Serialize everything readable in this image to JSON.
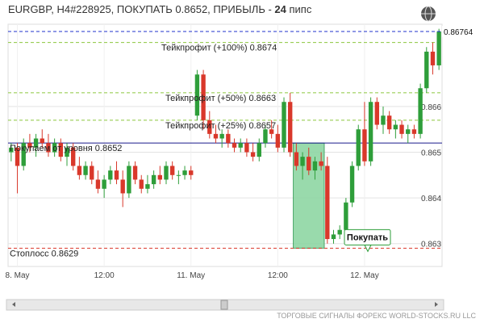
{
  "chart_data": {
    "type": "candlestick",
    "title": "EURGBP, H4#228925, ПОКУПАТЬ 0.8652, ПРИБЫЛЬ - ",
    "profit": "24",
    "profit_unit": " пипс",
    "categories": [
      null,
      "8. May",
      null,
      null,
      null,
      null,
      null,
      null,
      null,
      null,
      null,
      null,
      null,
      null,
      null,
      "12:00",
      null,
      null,
      null,
      null,
      null,
      null,
      null,
      null,
      null,
      null,
      null,
      null,
      null,
      "11. May",
      null,
      null,
      null,
      null,
      null,
      null,
      null,
      null,
      null,
      null,
      null,
      null,
      null,
      "12:00",
      null,
      null,
      null,
      null,
      null,
      null,
      null,
      null,
      null,
      null,
      null,
      null,
      null,
      "12. May",
      null,
      null,
      null,
      null,
      null,
      null,
      null,
      null,
      null,
      null,
      null,
      null
    ],
    "open": [
      0.865,
      0.8651,
      0.8647,
      0.8652,
      0.8651,
      0.8653,
      0.8652,
      0.865,
      0.8652,
      0.8649,
      0.8651,
      0.8647,
      0.8645,
      0.8647,
      0.8644,
      0.8642,
      0.8644,
      0.8646,
      0.8644,
      0.8641,
      0.8647,
      0.8644,
      0.8642,
      0.8643,
      0.8645,
      0.8644,
      0.8647,
      0.8645,
      0.8645,
      0.8646,
      0.8658,
      0.8667,
      0.8657,
      0.8654,
      0.8653,
      0.8654,
      0.8652,
      0.8651,
      0.8652,
      0.865,
      0.8649,
      0.8652,
      0.8655,
      0.8654,
      0.8651,
      0.8661,
      0.865,
      0.8647,
      0.8649,
      0.8646,
      0.8648,
      0.8647,
      0.8631,
      0.8632,
      0.8633,
      0.8639,
      0.8647,
      0.8655,
      0.8648,
      0.8661,
      0.8656,
      0.8658,
      0.8655,
      0.8656,
      0.8654,
      0.8655,
      0.8654,
      0.8664,
      0.8672,
      0.8669
    ],
    "high": [
      0.8652,
      0.8652,
      0.8653,
      0.8654,
      0.8654,
      0.8655,
      0.8654,
      0.8653,
      0.8653,
      0.8652,
      0.8652,
      0.8649,
      0.8648,
      0.8648,
      0.8646,
      0.8645,
      0.8647,
      0.8648,
      0.8646,
      0.8648,
      0.8648,
      0.8645,
      0.8645,
      0.8646,
      0.8647,
      0.8648,
      0.8648,
      0.8646,
      0.8647,
      0.8647,
      0.8668,
      0.8668,
      0.8659,
      0.8656,
      0.8655,
      0.8655,
      0.8653,
      0.8653,
      0.8653,
      0.8652,
      0.8653,
      0.8656,
      0.8657,
      0.8656,
      0.8662,
      0.8663,
      0.8652,
      0.865,
      0.8651,
      0.8649,
      0.865,
      0.8649,
      0.8633,
      0.8634,
      0.864,
      0.8648,
      0.8656,
      0.8661,
      0.8662,
      0.8662,
      0.866,
      0.8659,
      0.8657,
      0.8657,
      0.8656,
      0.8656,
      0.8665,
      0.8673,
      0.8674,
      0.8677
    ],
    "low": [
      0.8648,
      0.8641,
      0.8646,
      0.865,
      0.8649,
      0.8651,
      0.8649,
      0.8649,
      0.8648,
      0.8647,
      0.8646,
      0.8644,
      0.8644,
      0.8643,
      0.8641,
      0.864,
      0.8643,
      0.8643,
      0.8638,
      0.864,
      0.8643,
      0.8641,
      0.8641,
      0.8642,
      0.8643,
      0.8643,
      0.8644,
      0.8643,
      0.8644,
      0.8644,
      0.8657,
      0.8655,
      0.8653,
      0.8652,
      0.8651,
      0.8651,
      0.865,
      0.865,
      0.8649,
      0.8648,
      0.8648,
      0.8651,
      0.8653,
      0.865,
      0.865,
      0.8649,
      0.8646,
      0.8644,
      0.8645,
      0.8644,
      0.8646,
      0.863,
      0.863,
      0.8631,
      0.8632,
      0.8638,
      0.8646,
      0.8647,
      0.8647,
      0.8655,
      0.8654,
      0.8654,
      0.8653,
      0.8653,
      0.8652,
      0.8653,
      0.8653,
      0.8663,
      0.8667,
      0.8668
    ],
    "close": [
      0.8651,
      0.8647,
      0.8652,
      0.8651,
      0.8653,
      0.8652,
      0.865,
      0.8652,
      0.8649,
      0.8651,
      0.8647,
      0.8645,
      0.8647,
      0.8644,
      0.8642,
      0.8644,
      0.8646,
      0.8644,
      0.8641,
      0.8647,
      0.8644,
      0.8642,
      0.8643,
      0.8645,
      0.8644,
      0.8647,
      0.8645,
      0.8645,
      0.8646,
      0.8645,
      0.8667,
      0.8657,
      0.8654,
      0.8653,
      0.8654,
      0.8652,
      0.8651,
      0.8652,
      0.865,
      0.8649,
      0.8652,
      0.8655,
      0.8654,
      0.8651,
      0.8661,
      0.865,
      0.8647,
      0.8649,
      0.8646,
      0.8648,
      0.8647,
      0.8631,
      0.8632,
      0.8633,
      0.8639,
      0.8647,
      0.8655,
      0.8648,
      0.8661,
      0.8656,
      0.8658,
      0.8655,
      0.8656,
      0.8654,
      0.8655,
      0.8654,
      0.8664,
      0.8672,
      0.8669,
      0.86764
    ],
    "up_color": "#2e9e3a",
    "down_color": "#d9382b",
    "ylim": [
      0.8625,
      0.8678
    ],
    "yticks": [
      0.863,
      0.864,
      0.865,
      0.866
    ],
    "grid": true,
    "levels": [
      {
        "label": "Тейкпрофит (+100%) 0.8674",
        "value": 0.8674,
        "color": "#8cc63f",
        "style": "dashed"
      },
      {
        "label": "Тейкпрофит (+50%) 0.8663",
        "value": 0.8663,
        "color": "#8cc63f",
        "style": "dashed"
      },
      {
        "label": "Тейкпрофит (+25%) 0.8657",
        "value": 0.8657,
        "color": "#8cc63f",
        "style": "dashed"
      },
      {
        "label": "Покупаем от уровня 0.8652",
        "value": 0.8652,
        "color": "#1a1a8c",
        "style": "solid"
      },
      {
        "label": "Стоплосс 0.8629",
        "value": 0.8629,
        "color": "#d9382b",
        "style": "dashed"
      }
    ],
    "current_price": {
      "label": "0.86764",
      "value": 0.86764,
      "color": "#2233cc"
    },
    "signal": "Покупать",
    "footer": "ТОРГОВЫЕ СИГНАЛЫ ФОРЕКС WORLD-STOCKS.RU LLC"
  }
}
